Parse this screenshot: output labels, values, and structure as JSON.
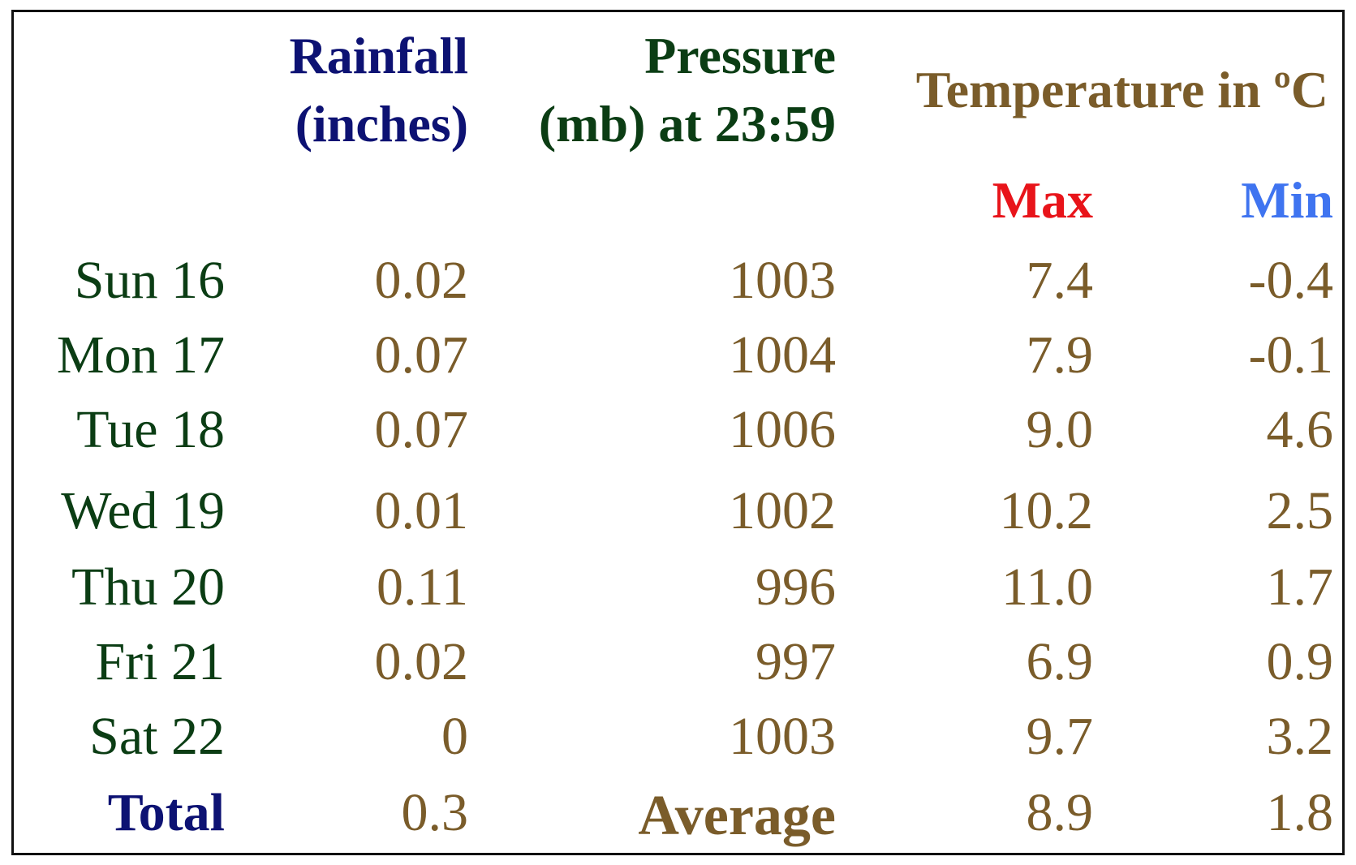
{
  "colors": {
    "rainfall_header": "#0d1273",
    "pressure_header": "#0b3d14",
    "temperature_header": "#7a5c2a",
    "max_header": "#e8141a",
    "min_header": "#3f74f0",
    "day_label": "#0b3d14",
    "value": "#7a5c2a",
    "total_label": "#0d1273",
    "average_label": "#7a5c2a",
    "border": "#111111"
  },
  "headers": {
    "rainfall_line1": "Rainfall",
    "rainfall_line2": "(inches)",
    "pressure_line1": "Pressure",
    "pressure_line2": "(mb) at 23:59",
    "temperature": "Temperature in ºC",
    "max": "Max",
    "min": "Min"
  },
  "chart_data": {
    "type": "table",
    "columns": [
      "",
      "Rainfall (inches)",
      "Pressure (mb) at 23:59",
      "Max",
      "Min"
    ],
    "rows": [
      {
        "day": "Sun 16",
        "rainfall": "0.02",
        "pressure": "1003",
        "max": "7.4",
        "min": "-0.4"
      },
      {
        "day": "Mon 17",
        "rainfall": "0.07",
        "pressure": "1004",
        "max": "7.9",
        "min": "-0.1"
      },
      {
        "day": "Tue 18",
        "rainfall": "0.07",
        "pressure": "1006",
        "max": "9.0",
        "min": "4.6"
      },
      {
        "day": "Wed 19",
        "rainfall": "0.01",
        "pressure": "1002",
        "max": "10.2",
        "min": "2.5"
      },
      {
        "day": "Thu 20",
        "rainfall": "0.11",
        "pressure": "996",
        "max": "11.0",
        "min": "1.7"
      },
      {
        "day": "Fri 21",
        "rainfall": "0.02",
        "pressure": "997",
        "max": "6.9",
        "min": "0.9"
      },
      {
        "day": "Sat 22",
        "rainfall": "0",
        "pressure": "1003",
        "max": "9.7",
        "min": "3.2"
      }
    ],
    "summary": {
      "total_label": "Total",
      "rainfall_total": "0.3",
      "average_label": "Average",
      "max_average": "8.9",
      "min_average": "1.8"
    }
  }
}
